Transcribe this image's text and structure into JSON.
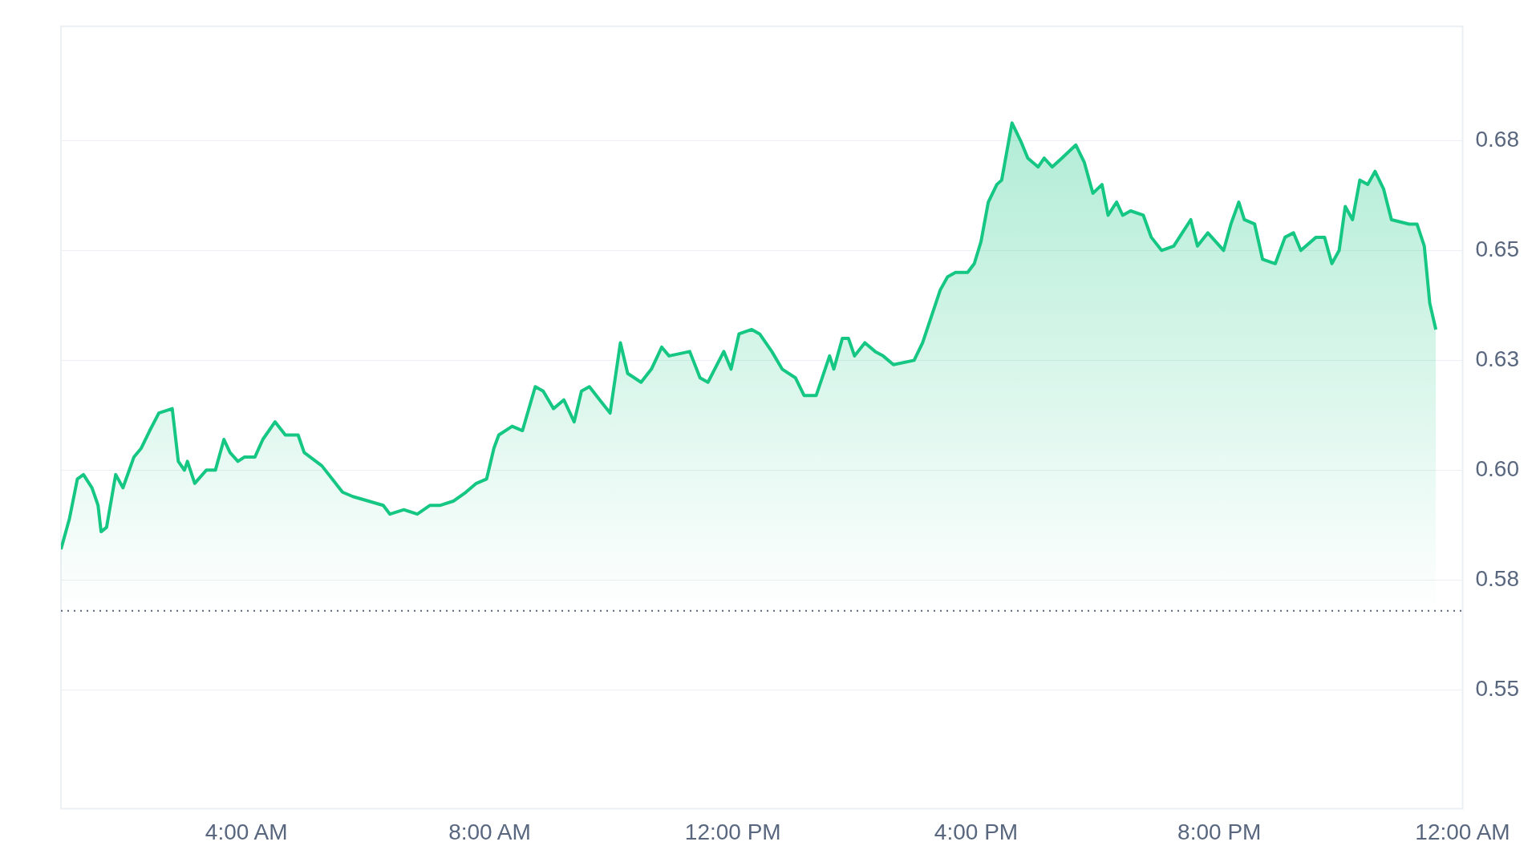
{
  "chart_data": {
    "type": "area",
    "x": [
      0.95,
      1.09,
      1.22,
      1.32,
      1.46,
      1.56,
      1.61,
      1.7,
      1.85,
      1.97,
      2.15,
      2.27,
      2.41,
      2.56,
      2.78,
      2.88,
      2.98,
      3.03,
      3.15,
      3.34,
      3.49,
      3.63,
      3.73,
      3.86,
      3.97,
      4.14,
      4.27,
      4.47,
      4.64,
      4.85,
      4.95,
      5.24,
      5.41,
      5.58,
      5.75,
      6.0,
      6.25,
      6.36,
      6.59,
      6.81,
      7.02,
      7.19,
      7.41,
      7.61,
      7.78,
      7.95,
      8.07,
      8.15,
      8.37,
      8.54,
      8.75,
      8.88,
      9.05,
      9.22,
      9.39,
      9.51,
      9.64,
      9.81,
      9.98,
      10.15,
      10.27,
      10.49,
      10.66,
      10.83,
      10.95,
      11.29,
      11.46,
      11.59,
      11.85,
      11.97,
      12.1,
      12.31,
      12.44,
      12.64,
      12.81,
      13.03,
      13.17,
      13.37,
      13.59,
      13.66,
      13.8,
      13.9,
      14.0,
      14.17,
      14.34,
      14.47,
      14.64,
      14.98,
      15.12,
      15.24,
      15.41,
      15.53,
      15.66,
      15.86,
      15.97,
      16.08,
      16.2,
      16.34,
      16.42,
      16.59,
      16.73,
      16.85,
      17.02,
      17.12,
      17.25,
      17.41,
      17.64,
      17.78,
      17.92,
      18.07,
      18.17,
      18.31,
      18.41,
      18.54,
      18.75,
      18.88,
      19.05,
      19.25,
      19.39,
      19.53,
      19.64,
      19.81,
      20.07,
      20.19,
      20.32,
      20.41,
      20.58,
      20.71,
      20.92,
      21.08,
      21.22,
      21.34,
      21.59,
      21.73,
      21.85,
      21.97,
      22.07,
      22.19,
      22.31,
      22.44,
      22.56,
      22.7,
      22.83,
      23.12,
      23.25,
      23.37,
      23.46,
      23.56
    ],
    "series": [
      {
        "color": "#16c784",
        "values": [
          0.582,
          0.589,
          0.598,
          0.599,
          0.596,
          0.592,
          0.586,
          0.587,
          0.599,
          0.596,
          0.603,
          0.605,
          0.609,
          0.613,
          0.614,
          0.602,
          0.6,
          0.602,
          0.597,
          0.6,
          0.6,
          0.607,
          0.604,
          0.602,
          0.603,
          0.603,
          0.607,
          0.611,
          0.608,
          0.608,
          0.604,
          0.601,
          0.598,
          0.595,
          0.594,
          0.593,
          0.592,
          0.59,
          0.591,
          0.59,
          0.592,
          0.592,
          0.593,
          0.595,
          0.597,
          0.598,
          0.605,
          0.608,
          0.61,
          0.609,
          0.619,
          0.618,
          0.614,
          0.616,
          0.611,
          0.618,
          0.619,
          0.616,
          0.613,
          0.629,
          0.622,
          0.62,
          0.623,
          0.628,
          0.626,
          0.627,
          0.621,
          0.62,
          0.627,
          0.623,
          0.631,
          0.632,
          0.631,
          0.627,
          0.623,
          0.621,
          0.617,
          0.617,
          0.626,
          0.623,
          0.63,
          0.63,
          0.626,
          0.629,
          0.627,
          0.626,
          0.624,
          0.625,
          0.629,
          0.634,
          0.641,
          0.644,
          0.645,
          0.645,
          0.647,
          0.652,
          0.661,
          0.665,
          0.666,
          0.679,
          0.675,
          0.671,
          0.669,
          0.671,
          0.669,
          0.671,
          0.674,
          0.67,
          0.663,
          0.665,
          0.658,
          0.661,
          0.658,
          0.659,
          0.658,
          0.653,
          0.65,
          0.651,
          0.654,
          0.657,
          0.651,
          0.654,
          0.65,
          0.656,
          0.661,
          0.657,
          0.656,
          0.648,
          0.647,
          0.653,
          0.654,
          0.65,
          0.653,
          0.653,
          0.647,
          0.65,
          0.66,
          0.657,
          0.666,
          0.665,
          0.668,
          0.664,
          0.657,
          0.656,
          0.656,
          0.651,
          0.638,
          0.632
        ]
      }
    ],
    "xlim": [
      0.95,
      24
    ],
    "xticks": [
      {
        "value": 4,
        "label": "4:00 AM"
      },
      {
        "value": 8,
        "label": "8:00 AM"
      },
      {
        "value": 12,
        "label": "12:00 PM"
      },
      {
        "value": 16,
        "label": "4:00 PM"
      },
      {
        "value": 20,
        "label": "8:00 PM"
      },
      {
        "value": 24,
        "label": "12:00 AM"
      }
    ],
    "ylim": [
      0.523,
      0.701
    ],
    "yticks": [
      {
        "value": 0.55,
        "label": "0.55"
      },
      {
        "value": 0.575,
        "label": "0.58"
      },
      {
        "value": 0.6,
        "label": "0.60"
      },
      {
        "value": 0.625,
        "label": "0.63"
      },
      {
        "value": 0.65,
        "label": "0.65"
      },
      {
        "value": 0.675,
        "label": "0.68"
      }
    ],
    "ref_lines": [
      {
        "axis": "y",
        "value": 0.568,
        "color": "#58667e",
        "line_style": "dotted"
      }
    ],
    "grid": "y",
    "marker": "none",
    "line_style": "solid"
  }
}
